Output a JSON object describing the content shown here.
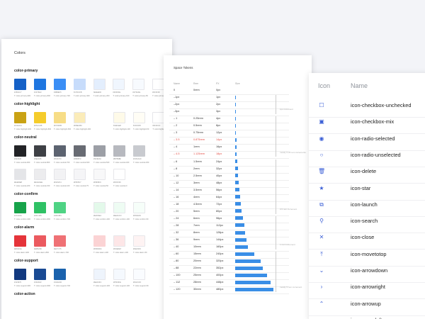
{
  "colors": {
    "title": "Colors",
    "groups": [
      {
        "name": "color-primary",
        "rows": [
          [
            {
              "hex": "#1561c7",
              "code": "#1561C7",
              "label": "T: color-primary-900"
            },
            {
              "hex": "#1f76e0",
              "code": "#1F76E0",
              "label": "T: color-primary-800"
            },
            {
              "hex": "#3b8ef5",
              "code": "#3B8EF5",
              "label": "T: color-primary-700"
            },
            {
              "hex": "#c7dcfb",
              "code": "#C7DCFB",
              "label": "T: color-primary-300"
            },
            {
              "hex": "#e3eefd",
              "code": "#E3EEFD",
              "label": "T: color-primary-200"
            },
            {
              "hex": "#f0f6fe",
              "code": "#F0F6FE",
              "label": "T: color-primary-100"
            },
            {
              "hex": "#f7fafe",
              "code": "#F7FAFE",
              "label": "T: color-primary-50"
            },
            {
              "hex": "#ffffff",
              "code": "#FFFFFF",
              "label": "T: color-primary-0"
            }
          ]
        ]
      },
      {
        "name": "color-highlight",
        "rows": [
          [
            {
              "hex": "#c9a214",
              "code": "#C9A214",
              "label": "T: color-highlight-900"
            },
            {
              "hex": "#f5cc2b",
              "code": "#F5CC2B",
              "label": "T: color-highlight-800"
            },
            {
              "hex": "#f7dd86",
              "code": "#F7DD86",
              "label": "T: color-highlight-500"
            },
            {
              "hex": "#fbecb9",
              "code": "#FBECB9",
              "label": "T: color-highlight-300"
            },
            null,
            {
              "hex": "#fefae8",
              "code": "#FEFAE8",
              "label": "T: color-highlight-100"
            },
            {
              "hex": "#fffdf5",
              "code": "#FFFDF5",
              "label": "T: color-highlight-50"
            },
            {
              "hex": "#ffffff",
              "code": "#FFFFFF",
              "label": "T: color-highlight-0"
            }
          ]
        ]
      },
      {
        "name": "color-neutral",
        "rows": [
          [
            {
              "hex": "#222326",
              "code": "#222326",
              "label": "T: color-neutral-900"
            },
            {
              "hex": "#3e4045",
              "code": "#3E4045",
              "label": "T: color-neutral-800"
            },
            {
              "hex": "#5c6370",
              "code": "#5C6370",
              "label": "T: color-neutral-700"
            },
            {
              "hex": "#686b73",
              "code": "#686B73",
              "label": "T: color-neutral-600"
            },
            {
              "hex": "#9c9fa6",
              "code": "#9C9FA6",
              "label": "T: color-neutral-500"
            },
            {
              "hex": "#b7b9bf",
              "code": "#B7B9BF",
              "label": "T: color-neutral-400"
            },
            {
              "hex": "#c8cacf",
              "code": "#C8CACF",
              "label": "T: color-neutral-300"
            }
          ],
          [
            {
              "hex": "#e4e5e8",
              "code": "#E4E5E8",
              "label": "T: color-neutral-200"
            },
            {
              "hex": "#ececee",
              "code": "#ECECEE",
              "label": "T: color-neutral-150"
            },
            {
              "hex": "#f2f2f4",
              "code": "#F2F2F4",
              "label": "T: color-neutral-100"
            },
            {
              "hex": "#f5f5f7",
              "code": "#F5F5F7",
              "label": "T: color-neutral-75"
            },
            {
              "hex": "#f8f8f9",
              "code": "#F8F8F9",
              "label": "T: color-neutral-50"
            },
            {
              "hex": "#ffffff",
              "code": "#FFFFFF",
              "label": "T: color-neutral-0"
            }
          ]
        ]
      },
      {
        "name": "color-confirm",
        "rows": [
          [
            {
              "hex": "#17a34a",
              "code": "#17A34A",
              "label": "T: color-confirm-900"
            },
            {
              "hex": "#2fc165",
              "code": "#2FC165",
              "label": "T: color-confirm-800"
            },
            {
              "hex": "#4fd384",
              "code": "#4FD384",
              "label": "T: color-confirm-700"
            },
            null,
            {
              "hex": "#e3f9ea",
              "code": "#E3F9EA",
              "label": "T: color-confirm-200"
            },
            {
              "hex": "#eefcf3",
              "code": "#EEFCF3",
              "label": "T: color-confirm-100"
            },
            {
              "hex": "#f6fef9",
              "code": "#F6FEF9",
              "label": "T: color-confirm-50"
            }
          ]
        ]
      },
      {
        "name": "color-alarm",
        "rows": [
          [
            {
              "hex": "#e5343a",
              "code": "#E5343A",
              "label": "T: color-alarm-900"
            },
            {
              "hex": "#eb5a5f",
              "code": "#EB5A5F",
              "label": "T: color-alarm-800"
            },
            {
              "hex": "#ef7175",
              "code": "#EF7175",
              "label": "T: color-alarm-700"
            },
            null,
            {
              "hex": "#fbd3d4",
              "code": "#FBD3D4",
              "label": "T: color-alarm-200"
            },
            {
              "hex": "#fde6e7",
              "code": "#FDE6E7",
              "label": "T: color-alarm-100"
            },
            {
              "hex": "#fef3f3",
              "code": "#FEF3F3",
              "label": "T: color-alarm-50"
            }
          ]
        ]
      },
      {
        "name": "color-support",
        "rows": [
          [
            {
              "hex": "#12397f",
              "code": "#12397F",
              "label": "T: color-support-900"
            },
            {
              "hex": "#194a93",
              "code": "#194A93",
              "label": "T: color-support-800"
            },
            {
              "hex": "#1a62ad",
              "code": "#1A62AD",
              "label": "T: color-support-700"
            },
            null,
            {
              "hex": "#eef4fc",
              "code": "#EEF4FC",
              "label": "T: color-support-200"
            },
            {
              "hex": "#f5f9fe",
              "code": "#F5F9FE",
              "label": "T: color-support-100"
            },
            {
              "hex": "#fafcff",
              "code": "#FAFCFF",
              "label": "T: color-support-50"
            }
          ]
        ]
      },
      {
        "name": "color-action",
        "rows": []
      }
    ]
  },
  "space": {
    "title": "Space Tokens",
    "headers": {
      "name": "Name",
      "rem": "Rem",
      "px": "PX",
      "size": "Size"
    },
    "rows": [
      {
        "name": "0",
        "rem": "0rem",
        "px": "0px",
        "value": 0,
        "alt": false
      },
      {
        "name": "–1px",
        "rem": "",
        "px": "1px",
        "value": 1,
        "alt": false
      },
      {
        "name": "–2px",
        "rem": "",
        "px": "2px",
        "value": 2,
        "alt": false
      },
      {
        "name": "–3px",
        "rem": "",
        "px": "3px",
        "value": 3,
        "alt": false
      },
      {
        "name": "– 1",
        "rem": "0.25rem",
        "px": "4px",
        "value": 4,
        "alt": false
      },
      {
        "name": "– 2",
        "rem": "0.5rem",
        "px": "8px",
        "value": 8,
        "alt": false
      },
      {
        "name": "– 3",
        "rem": "0.75rem",
        "px": "12px",
        "value": 12,
        "alt": false
      },
      {
        "name": "– 3.5",
        "rem": "0.875rem",
        "px": "14px",
        "value": 14,
        "alt": true
      },
      {
        "name": "– 4",
        "rem": "1rem",
        "px": "16px",
        "value": 16,
        "alt": false
      },
      {
        "name": "– 4.5",
        "rem": "1.125rem",
        "px": "18px",
        "value": 18,
        "alt": true
      },
      {
        "name": "– 6",
        "rem": "1.5rem",
        "px": "24px",
        "value": 24,
        "alt": false
      },
      {
        "name": "– 8",
        "rem": "2rem",
        "px": "32px",
        "value": 32,
        "alt": false
      },
      {
        "name": "– 10",
        "rem": "2.5rem",
        "px": "40px",
        "value": 40,
        "alt": false
      },
      {
        "name": "– 12",
        "rem": "3rem",
        "px": "48px",
        "value": 48,
        "alt": false
      },
      {
        "name": "– 14",
        "rem": "3.5rem",
        "px": "56px",
        "value": 56,
        "alt": false
      },
      {
        "name": "– 16",
        "rem": "4rem",
        "px": "64px",
        "value": 64,
        "alt": false
      },
      {
        "name": "– 18",
        "rem": "4.5rem",
        "px": "72px",
        "value": 72,
        "alt": false
      },
      {
        "name": "– 20",
        "rem": "5rem",
        "px": "80px",
        "value": 80,
        "alt": false
      },
      {
        "name": "– 24",
        "rem": "6rem",
        "px": "96px",
        "value": 96,
        "alt": false
      },
      {
        "name": "– 28",
        "rem": "7rem",
        "px": "112px",
        "value": 112,
        "alt": false
      },
      {
        "name": "– 32",
        "rem": "8rem",
        "px": "128px",
        "value": 128,
        "alt": false
      },
      {
        "name": "– 36",
        "rem": "9rem",
        "px": "144px",
        "value": 144,
        "alt": false
      },
      {
        "name": "– 40",
        "rem": "10rem",
        "px": "160px",
        "value": 160,
        "alt": false
      },
      {
        "name": "– 60",
        "rem": "15rem",
        "px": "240px",
        "value": 240,
        "alt": false
      },
      {
        "name": "– 80",
        "rem": "20rem",
        "px": "320px",
        "value": 320,
        "alt": false
      },
      {
        "name": "– 88",
        "rem": "22rem",
        "px": "352px",
        "value": 352,
        "alt": false
      },
      {
        "name": "– 100",
        "rem": "25rem",
        "px": "400px",
        "value": 400,
        "alt": false
      },
      {
        "name": "– 112",
        "rem": "28rem",
        "px": "448px",
        "value": 448,
        "alt": false
      },
      {
        "name": "– 120",
        "rem": "30rem",
        "px": "480px",
        "value": 480,
        "alt": false
      }
    ],
    "notes": [
      {
        "text": "1px increment",
        "from": 1,
        "to": 3
      },
      {
        "text": "mostly 0.25 rem increments",
        "from": 4,
        "to": 9
      },
      {
        "text": "0.5 rem increment",
        "from": 10,
        "to": 17
      },
      {
        "text": "1 rem increment",
        "from": 18,
        "to": 22
      },
      {
        "text": "mostly 5 rem increment",
        "from": 23,
        "to": 28
      }
    ]
  },
  "icons": {
    "header_icon": "Icon",
    "header_name": "Name",
    "accent": "#3b5fd6",
    "items": [
      {
        "glyph": "☐",
        "name": "icon-checkbox-unchecked"
      },
      {
        "glyph": "▣",
        "name": "icon-checkbox-mix"
      },
      {
        "glyph": "◉",
        "name": "icon-radio-selected"
      },
      {
        "glyph": "○",
        "name": "icon-radio-unselected"
      },
      {
        "glyph": "🗑",
        "name": "icon-delete"
      },
      {
        "glyph": "★",
        "name": "icon-star"
      },
      {
        "glyph": "⧉",
        "name": "icon-launch"
      },
      {
        "glyph": "⚲",
        "name": "icon-search"
      },
      {
        "glyph": "✕",
        "name": "icon-close"
      },
      {
        "glyph": "⤒",
        "name": "icon-movetotop"
      },
      {
        "glyph": "⌄",
        "name": "icon-arrowdown"
      },
      {
        "glyph": "›",
        "name": "icon-arrowright"
      },
      {
        "glyph": "⌃",
        "name": "icon-arrowup"
      },
      {
        "glyph": "‹",
        "name": "icon-arrowleft"
      }
    ]
  }
}
